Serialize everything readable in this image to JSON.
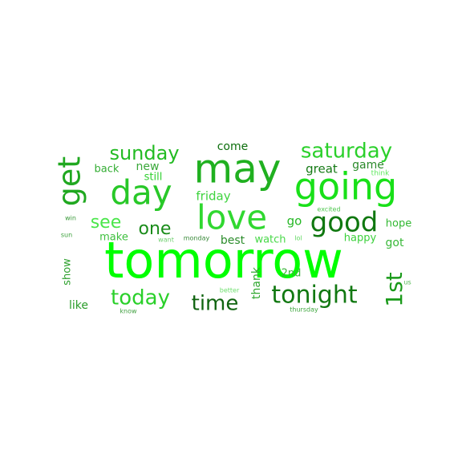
{
  "words": [
    {
      "text": "tomorrow",
      "color": "#00ff00"
    },
    {
      "text": "may",
      "color": "#20b020"
    },
    {
      "text": "going",
      "color": "#19e019"
    },
    {
      "text": "love",
      "color": "#30d830"
    },
    {
      "text": "day",
      "color": "#28c828"
    },
    {
      "text": "good",
      "color": "#107810"
    },
    {
      "text": "get",
      "color": "#20a820"
    },
    {
      "text": "tonight",
      "color": "#117811"
    },
    {
      "text": "1st",
      "color": "#1a9a1a"
    },
    {
      "text": "saturday",
      "color": "#2bd02b"
    },
    {
      "text": "sunday",
      "color": "#22bb22"
    },
    {
      "text": "today",
      "color": "#2ad02a"
    },
    {
      "text": "time",
      "color": "#106410"
    },
    {
      "text": "see",
      "color": "#4ae64a"
    },
    {
      "text": "one",
      "color": "#1a8c1a"
    },
    {
      "text": "friday",
      "color": "#3fd43f"
    },
    {
      "text": "come",
      "color": "#0c6e0c"
    },
    {
      "text": "great",
      "color": "#157a15"
    },
    {
      "text": "game",
      "color": "#2a8a2a"
    },
    {
      "text": "new",
      "color": "#3aa83a"
    },
    {
      "text": "back",
      "color": "#34ad34"
    },
    {
      "text": "still",
      "color": "#30d030"
    },
    {
      "text": "go",
      "color": "#26b826"
    },
    {
      "text": "make",
      "color": "#3ec03e"
    },
    {
      "text": "best",
      "color": "#2c8c2c"
    },
    {
      "text": "watch",
      "color": "#48d848"
    },
    {
      "text": "hope",
      "color": "#32b832"
    },
    {
      "text": "happy",
      "color": "#3ad03a"
    },
    {
      "text": "got",
      "color": "#38b838"
    },
    {
      "text": "show",
      "color": "#2ea02e"
    },
    {
      "text": "thank",
      "color": "#30a830"
    },
    {
      "text": "2nd",
      "color": "#3cb03c"
    },
    {
      "text": "like",
      "color": "#2a9c2a"
    },
    {
      "text": "think",
      "color": "#60e860"
    },
    {
      "text": "win",
      "color": "#3a9a3a"
    },
    {
      "text": "sun",
      "color": "#3aa03a"
    },
    {
      "text": "want",
      "color": "#70d070"
    },
    {
      "text": "monday",
      "color": "#3a8a3a"
    },
    {
      "text": "lol",
      "color": "#60d860"
    },
    {
      "text": "excited",
      "color": "#50c850"
    },
    {
      "text": "better",
      "color": "#70e070"
    },
    {
      "text": "know",
      "color": "#40a040"
    },
    {
      "text": "thursday",
      "color": "#40a840"
    },
    {
      "text": "us",
      "color": "#50b850"
    }
  ]
}
